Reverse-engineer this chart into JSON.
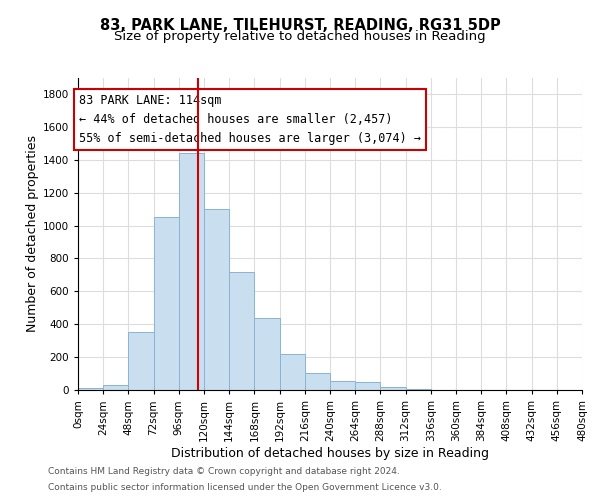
{
  "title": "83, PARK LANE, TILEHURST, READING, RG31 5DP",
  "subtitle": "Size of property relative to detached houses in Reading",
  "xlabel": "Distribution of detached houses by size in Reading",
  "ylabel": "Number of detached properties",
  "bin_edges": [
    0,
    24,
    48,
    72,
    96,
    120,
    144,
    168,
    192,
    216,
    240,
    264,
    288,
    312,
    336,
    360,
    384,
    408,
    432,
    456,
    480
  ],
  "bar_heights": [
    15,
    30,
    350,
    1050,
    1440,
    1100,
    720,
    435,
    220,
    105,
    55,
    50,
    18,
    5,
    2,
    1,
    0,
    0,
    0,
    0
  ],
  "bar_color": "#c9dff0",
  "bar_edgecolor": "#8ab4d4",
  "vline_x": 114,
  "vline_color": "#cc0000",
  "annotation_text_line1": "83 PARK LANE: 114sqm",
  "annotation_text_line2": "← 44% of detached houses are smaller (2,457)",
  "annotation_text_line3": "55% of semi-detached houses are larger (3,074) →",
  "ylim": [
    0,
    1900
  ],
  "yticks": [
    0,
    200,
    400,
    600,
    800,
    1000,
    1200,
    1400,
    1600,
    1800
  ],
  "xtick_labels": [
    "0sqm",
    "24sqm",
    "48sqm",
    "72sqm",
    "96sqm",
    "120sqm",
    "144sqm",
    "168sqm",
    "192sqm",
    "216sqm",
    "240sqm",
    "264sqm",
    "288sqm",
    "312sqm",
    "336sqm",
    "360sqm",
    "384sqm",
    "408sqm",
    "432sqm",
    "456sqm",
    "480sqm"
  ],
  "footer_line1": "Contains HM Land Registry data © Crown copyright and database right 2024.",
  "footer_line2": "Contains public sector information licensed under the Open Government Licence v3.0.",
  "background_color": "#ffffff",
  "grid_color": "#dddddd",
  "title_fontsize": 10.5,
  "subtitle_fontsize": 9.5,
  "axis_label_fontsize": 9,
  "tick_fontsize": 7.5,
  "annotation_fontsize": 8.5,
  "footer_fontsize": 6.5
}
